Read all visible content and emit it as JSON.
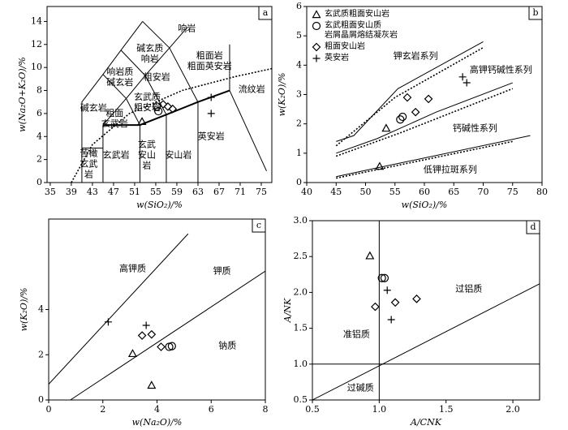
{
  "chart_data": [
    {
      "type": "scatter",
      "label": "a",
      "x_label": "w(SiO₂)/%",
      "y_label": "w(Na₂O+K₂O)/%",
      "xlim": [
        34.4,
        77
      ],
      "ylim": [
        0,
        15.3
      ],
      "xticks": [
        35,
        39,
        43,
        47,
        51,
        55,
        59,
        63,
        67,
        71,
        75
      ],
      "yticks": [
        0,
        2,
        4,
        6,
        8,
        10,
        12,
        14
      ],
      "boundaries": [
        {
          "style": "solid",
          "x": [
            41,
            41,
            45,
            48.4,
            52.5
          ],
          "y": [
            0,
            7,
            9.4,
            11.5,
            14
          ]
        },
        {
          "style": "solid",
          "x": [
            41,
            45
          ],
          "y": [
            3,
            3
          ]
        },
        {
          "style": "solid",
          "x": [
            45,
            45,
            49.4,
            53,
            57.6,
            61
          ],
          "y": [
            0,
            5,
            7.3,
            9.3,
            11.7,
            13.5
          ]
        },
        {
          "style": "solid",
          "x": [
            52,
            52
          ],
          "y": [
            0,
            5
          ]
        },
        {
          "style": "bold",
          "x": [
            45,
            52,
            57,
            63,
            69
          ],
          "y": [
            5,
            5,
            5.9,
            7,
            8
          ]
        },
        {
          "style": "solid",
          "x": [
            57,
            57
          ],
          "y": [
            0,
            5.9
          ]
        },
        {
          "style": "solid",
          "x": [
            63,
            63
          ],
          "y": [
            0,
            7
          ]
        },
        {
          "style": "solid",
          "x": [
            69,
            76
          ],
          "y": [
            8,
            1
          ]
        },
        {
          "style": "solid",
          "x": [
            69,
            69
          ],
          "y": [
            8,
            12
          ]
        },
        {
          "style": "solid",
          "x": [
            45,
            49.4
          ],
          "y": [
            9.4,
            7.3
          ]
        },
        {
          "style": "solid",
          "x": [
            48.4,
            53
          ],
          "y": [
            11.5,
            9.3
          ]
        },
        {
          "style": "solid",
          "x": [
            52.5,
            57.6
          ],
          "y": [
            14,
            11.7
          ]
        },
        {
          "style": "solid",
          "x": [
            49.4,
            52
          ],
          "y": [
            7.3,
            5
          ]
        },
        {
          "style": "solid",
          "x": [
            53,
            57
          ],
          "y": [
            9.3,
            5.9
          ]
        },
        {
          "style": "solid",
          "x": [
            57.6,
            63
          ],
          "y": [
            11.7,
            7
          ]
        },
        {
          "style": "dotted",
          "x": [
            39,
            43,
            50,
            60,
            70,
            77
          ],
          "y": [
            0,
            3.3,
            6,
            8,
            9.2,
            9.9
          ]
        }
      ],
      "annotations": [
        "响岩",
        "碱玄质\n响岩",
        "响岩质\n碱玄岩",
        "碱玄岩",
        "粗安岩",
        "粗面岩\n粗面英安岩",
        "玄武质\n粗安岩",
        "粗面\n玄武岩",
        "苦橄\n玄武\n岩",
        "玄武岩",
        "玄武\n安山\n岩",
        "安山岩",
        "英安岩",
        "流纹岩"
      ],
      "series": [
        {
          "marker": "triangle",
          "color": "#000000",
          "x": [
            52.4
          ],
          "values": [
            5.3
          ]
        },
        {
          "marker": "circle",
          "color": "#000000",
          "x": [
            55.2,
            55.5
          ],
          "values": [
            6.6,
            6.2
          ]
        },
        {
          "marker": "diamond",
          "color": "#000000",
          "x": [
            56.4,
            57.3,
            58.2
          ],
          "values": [
            6.8,
            6.6,
            6.4
          ]
        },
        {
          "marker": "cross",
          "color": "#000000",
          "x": [
            65.5,
            65.5
          ],
          "values": [
            7.4,
            6.0
          ]
        }
      ]
    },
    {
      "type": "scatter",
      "label": "b",
      "x_label": "w(SiO₂)/%",
      "y_label": "w(K₂O)/%",
      "xlim": [
        40,
        80
      ],
      "ylim": [
        0,
        6
      ],
      "xticks": [
        40,
        45,
        50,
        55,
        60,
        65,
        70,
        75,
        80
      ],
      "yticks": [
        0,
        1,
        2,
        3,
        4,
        5,
        6
      ],
      "boundaries": [
        {
          "style": "solid",
          "x": [
            45,
            48,
            55.5,
            70
          ],
          "y": [
            1.4,
            1.6,
            3.2,
            4.8
          ]
        },
        {
          "style": "dotted",
          "x": [
            45,
            55,
            70
          ],
          "y": [
            1.25,
            2.9,
            4.6
          ]
        },
        {
          "style": "solid",
          "x": [
            45,
            52,
            62,
            75
          ],
          "y": [
            1.0,
            1.5,
            2.4,
            3.4
          ]
        },
        {
          "style": "dotted",
          "x": [
            45,
            56,
            75
          ],
          "y": [
            0.9,
            1.7,
            3.2
          ]
        },
        {
          "style": "solid",
          "x": [
            45,
            52,
            78
          ],
          "y": [
            0.2,
            0.5,
            1.6
          ]
        },
        {
          "style": "dotted",
          "x": [
            45,
            75
          ],
          "y": [
            0.15,
            1.4
          ]
        }
      ],
      "annotations": [
        "钾玄岩系列",
        "高钾钙碱性系列",
        "钙碱性系列",
        "低钾拉斑系列"
      ],
      "series": [
        {
          "name": "玄武质粗面安山岩",
          "marker": "triangle",
          "color": "#000000",
          "x": [
            52.4,
            53.5
          ],
          "values": [
            0.55,
            1.85
          ]
        },
        {
          "name": "玄武粗面安山质\n岩屑晶屑熔结凝灰岩",
          "marker": "circle",
          "color": "#000000",
          "x": [
            55.9,
            56.3
          ],
          "values": [
            2.15,
            2.24
          ]
        },
        {
          "name": "粗面安山岩",
          "marker": "diamond",
          "color": "#000000",
          "x": [
            57.1,
            58.5,
            60.7
          ],
          "values": [
            2.9,
            2.4,
            2.85
          ]
        },
        {
          "name": "英安岩",
          "marker": "cross",
          "color": "#000000",
          "x": [
            66.5,
            67.2
          ],
          "values": [
            3.6,
            3.4
          ]
        }
      ]
    },
    {
      "type": "scatter",
      "label": "c",
      "x_label": "w(Na₂O)/%",
      "y_label": "w(K₂O)/%",
      "xlim": [
        0,
        8
      ],
      "ylim": [
        0,
        8
      ],
      "xticks": [
        0,
        2,
        4,
        6,
        8
      ],
      "yticks": [
        0,
        2,
        4
      ],
      "boundaries": [
        {
          "style": "solid",
          "x": [
            0,
            5.15
          ],
          "y": [
            0.7,
            7.35
          ]
        },
        {
          "style": "solid",
          "x": [
            0.8,
            8
          ],
          "y": [
            0,
            5.7
          ]
        }
      ],
      "annotations": [
        "高钾质",
        "钾质",
        "钠质"
      ],
      "series": [
        {
          "marker": "triangle",
          "color": "#000000",
          "x": [
            3.1,
            3.8
          ],
          "values": [
            2.05,
            0.65
          ]
        },
        {
          "marker": "circle",
          "color": "#000000",
          "x": [
            4.45,
            4.55
          ],
          "values": [
            2.35,
            2.38
          ]
        },
        {
          "marker": "diamond",
          "color": "#000000",
          "x": [
            3.45,
            3.8,
            4.15
          ],
          "values": [
            2.85,
            2.9,
            2.35
          ]
        },
        {
          "marker": "cross",
          "color": "#000000",
          "x": [
            2.2,
            3.6
          ],
          "values": [
            3.45,
            3.3
          ]
        }
      ]
    },
    {
      "type": "scatter",
      "label": "d",
      "x_label": "A/CNK",
      "y_label": "A/NK",
      "xlim": [
        0.5,
        2.2
      ],
      "ylim": [
        0.5,
        3.0
      ],
      "xticks": [
        0.5,
        {
          "value": 1,
          "label": "1.0"
        },
        1.5,
        {
          "value": 2,
          "label": "2.0"
        }
      ],
      "yticks": [
        0.5,
        {
          "value": 1,
          "label": "1.0"
        },
        1.5,
        {
          "value": 2,
          "label": "2.0"
        },
        2.5,
        {
          "value": 3,
          "label": "3.0"
        }
      ],
      "boundaries": [
        {
          "style": "solid",
          "x": [
            0.5,
            2.2
          ],
          "y": [
            1,
            1
          ]
        },
        {
          "style": "solid",
          "x": [
            1,
            1
          ],
          "y": [
            0.5,
            3.0
          ]
        },
        {
          "style": "solid",
          "x": [
            0.5,
            2.2
          ],
          "y": [
            0.5,
            2.12
          ]
        }
      ],
      "annotations": [
        "准铝质",
        "过铝质",
        "过碱质"
      ],
      "series": [
        {
          "marker": "triangle",
          "color": "#000000",
          "x": [
            0.93
          ],
          "values": [
            2.51
          ]
        },
        {
          "marker": "circle",
          "color": "#000000",
          "x": [
            1.02,
            1.04
          ],
          "values": [
            2.2,
            2.2
          ]
        },
        {
          "marker": "diamond",
          "color": "#000000",
          "x": [
            0.97,
            1.12,
            1.28
          ],
          "values": [
            1.8,
            1.86,
            1.91
          ]
        },
        {
          "marker": "cross",
          "color": "#000000",
          "x": [
            1.06,
            1.09
          ],
          "values": [
            2.03,
            1.62
          ]
        }
      ]
    }
  ]
}
